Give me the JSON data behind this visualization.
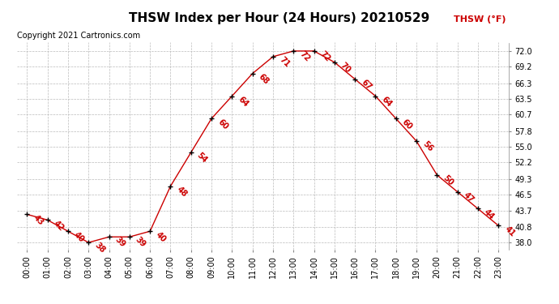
{
  "title": "THSW Index per Hour (24 Hours) 20210529",
  "copyright": "Copyright 2021 Cartronics.com",
  "legend_label": "THSW (°F)",
  "hours": [
    0,
    1,
    2,
    3,
    4,
    5,
    6,
    7,
    8,
    9,
    10,
    11,
    12,
    13,
    14,
    15,
    16,
    17,
    18,
    19,
    20,
    21,
    22,
    23
  ],
  "values": [
    43,
    42,
    40,
    38,
    39,
    39,
    40,
    48,
    54,
    60,
    64,
    68,
    71,
    72,
    72,
    70,
    67,
    64,
    60,
    56,
    50,
    47,
    44,
    41
  ],
  "x_labels": [
    "00:00",
    "01:00",
    "02:00",
    "03:00",
    "04:00",
    "05:00",
    "06:00",
    "07:00",
    "08:00",
    "09:00",
    "10:00",
    "11:00",
    "12:00",
    "13:00",
    "14:00",
    "15:00",
    "16:00",
    "17:00",
    "18:00",
    "19:00",
    "20:00",
    "21:00",
    "22:00",
    "23:00"
  ],
  "y_ticks": [
    38.0,
    40.8,
    43.7,
    46.5,
    49.3,
    52.2,
    55.0,
    57.8,
    60.7,
    63.5,
    66.3,
    69.2,
    72.0
  ],
  "ylim_min": 36.8,
  "ylim_max": 73.5,
  "line_color": "#cc0000",
  "marker_color": "#000000",
  "title_color": "#000000",
  "legend_color": "#cc0000",
  "copyright_color": "#000000",
  "grid_color": "#bbbbbb",
  "background_color": "#ffffff",
  "title_fontsize": 11,
  "axis_fontsize": 7,
  "label_fontsize": 7,
  "copyright_fontsize": 7
}
